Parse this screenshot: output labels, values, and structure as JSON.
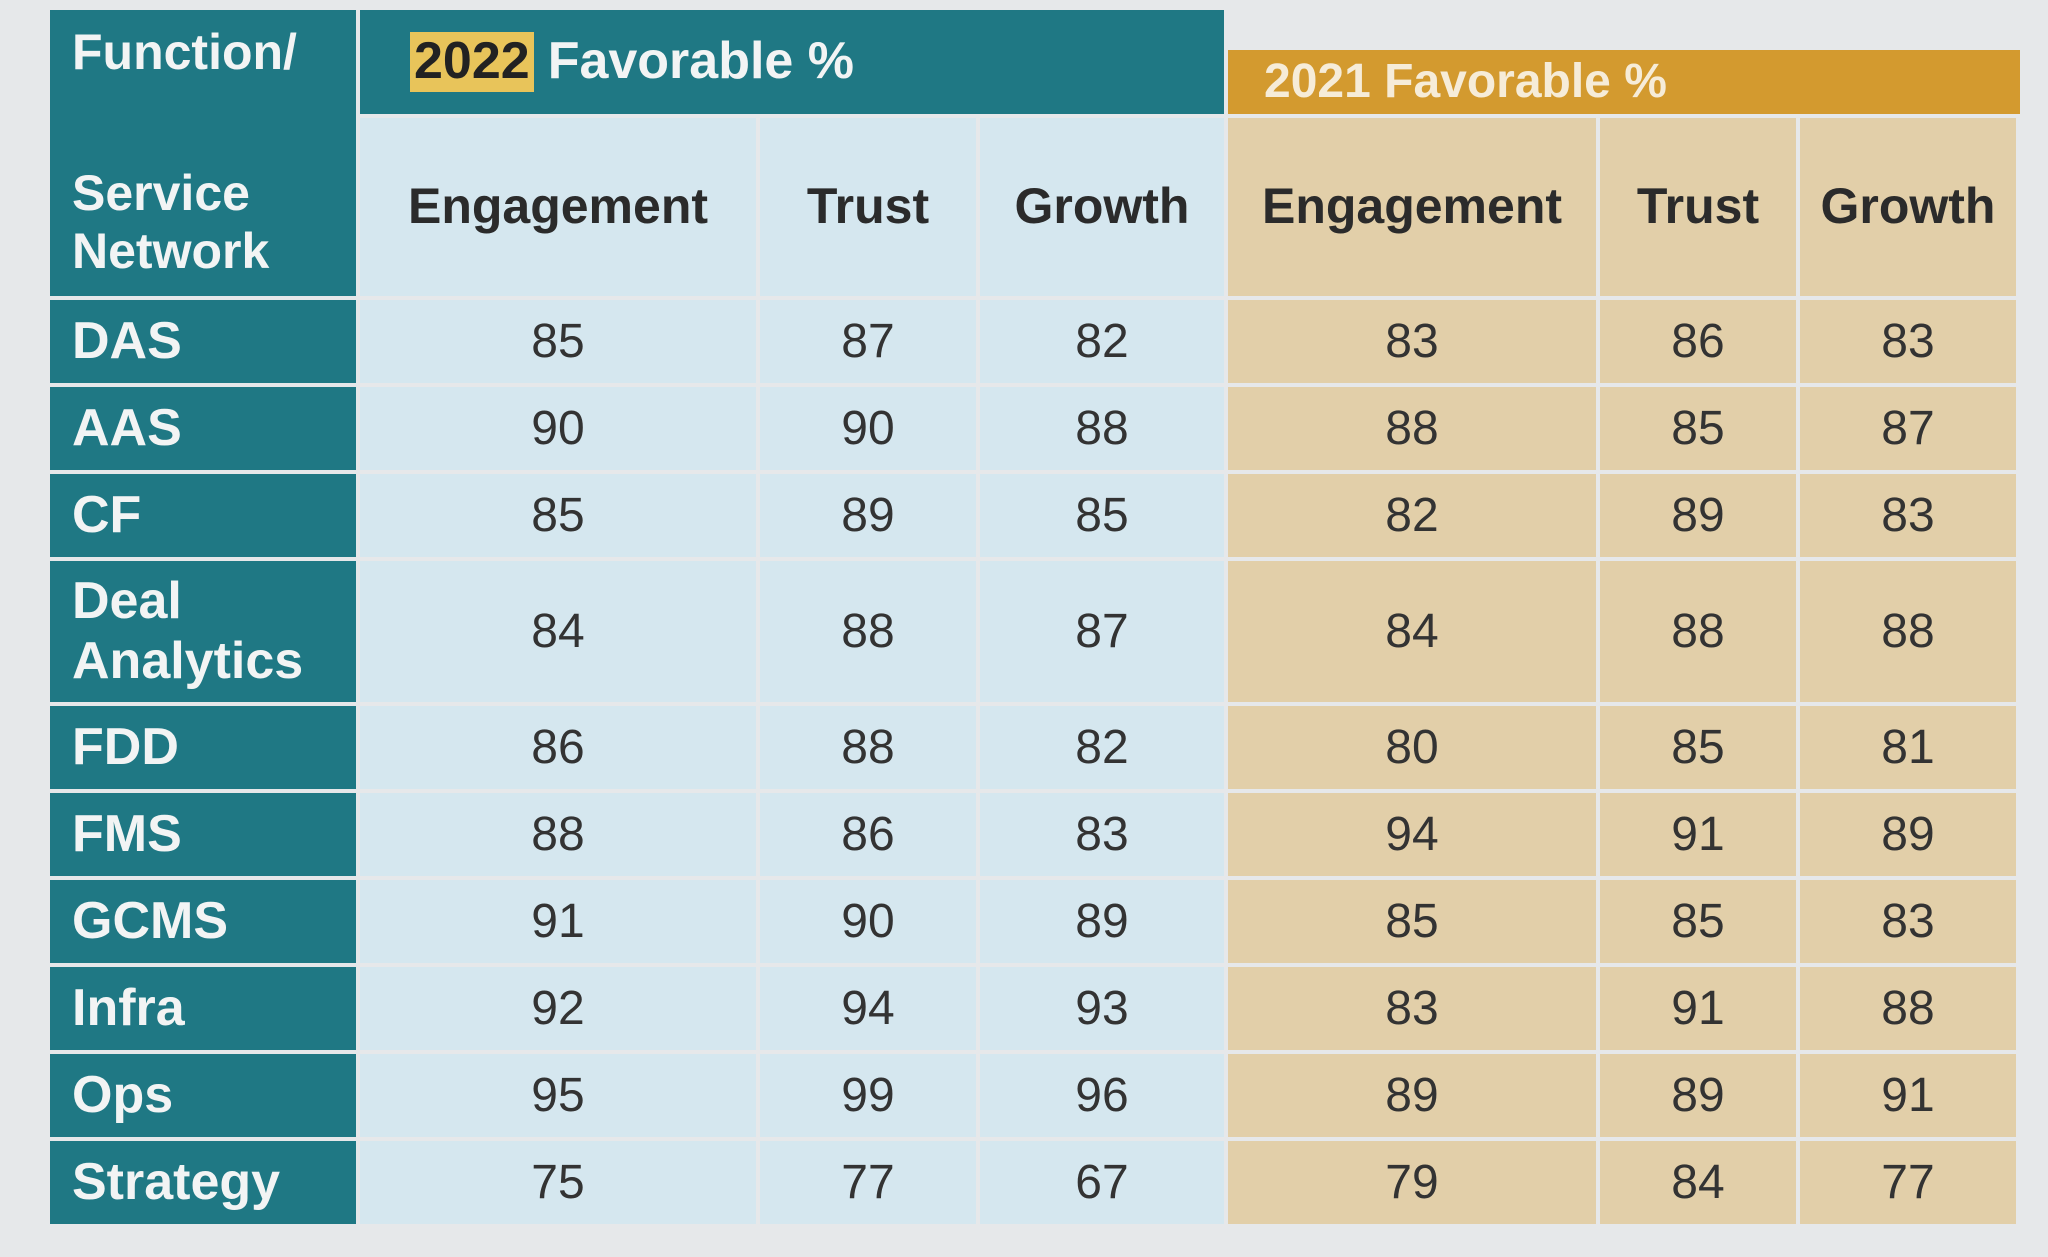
{
  "table": {
    "corner": {
      "top": "Function/",
      "bottom": "Service Network"
    },
    "groups": [
      {
        "highlight": "2022",
        "title": "Favorable %"
      },
      {
        "title": "2021 Favorable %"
      }
    ],
    "columns": [
      "Engagement",
      "Trust",
      "Growth",
      "Engagement",
      "Trust",
      "Growth"
    ],
    "rows": [
      {
        "label": "DAS",
        "values": [
          85,
          87,
          82,
          83,
          86,
          83
        ]
      },
      {
        "label": "AAS",
        "values": [
          90,
          90,
          88,
          88,
          85,
          87
        ]
      },
      {
        "label": "CF",
        "values": [
          85,
          89,
          85,
          82,
          89,
          83
        ]
      },
      {
        "label": "Deal Analytics",
        "values": [
          84,
          88,
          87,
          84,
          88,
          88
        ]
      },
      {
        "label": "FDD",
        "values": [
          86,
          88,
          82,
          80,
          85,
          81
        ]
      },
      {
        "label": "FMS",
        "values": [
          88,
          86,
          83,
          94,
          91,
          89
        ]
      },
      {
        "label": "GCMS",
        "values": [
          91,
          90,
          89,
          85,
          85,
          83
        ]
      },
      {
        "label": "Infra",
        "values": [
          92,
          94,
          93,
          83,
          91,
          88
        ]
      },
      {
        "label": "Ops",
        "values": [
          95,
          99,
          96,
          89,
          89,
          91
        ]
      },
      {
        "label": "Strategy",
        "values": [
          75,
          77,
          67,
          79,
          84,
          77
        ]
      }
    ]
  }
}
